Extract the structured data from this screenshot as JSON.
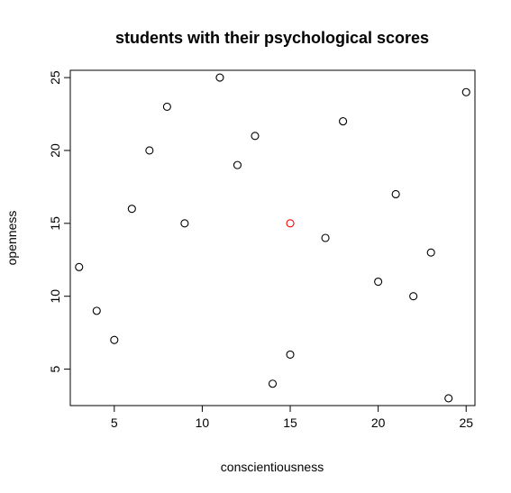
{
  "chart_data": {
    "type": "scatter",
    "title": "students with their psychological scores",
    "xlabel": "conscientiousness",
    "ylabel": "openness",
    "xlim": [
      2.5,
      25.5
    ],
    "ylim": [
      2.5,
      25.5
    ],
    "xticks": [
      5,
      10,
      15,
      20,
      25
    ],
    "yticks": [
      5,
      10,
      15,
      20,
      25
    ],
    "grid": false,
    "legend": "none",
    "marker": "open-circle",
    "series": [
      {
        "color": "#000000",
        "points": [
          {
            "x": 3,
            "y": 12
          },
          {
            "x": 4,
            "y": 9
          },
          {
            "x": 5,
            "y": 7
          },
          {
            "x": 6,
            "y": 16
          },
          {
            "x": 7,
            "y": 20
          },
          {
            "x": 8,
            "y": 23
          },
          {
            "x": 9,
            "y": 15
          },
          {
            "x": 11,
            "y": 25
          },
          {
            "x": 12,
            "y": 19
          },
          {
            "x": 13,
            "y": 21
          },
          {
            "x": 14,
            "y": 4
          },
          {
            "x": 15,
            "y": 6
          },
          {
            "x": 17,
            "y": 14
          },
          {
            "x": 18,
            "y": 22
          },
          {
            "x": 20,
            "y": 11
          },
          {
            "x": 21,
            "y": 17
          },
          {
            "x": 22,
            "y": 10
          },
          {
            "x": 23,
            "y": 13
          },
          {
            "x": 24,
            "y": 3
          },
          {
            "x": 25,
            "y": 24
          }
        ]
      },
      {
        "color": "#ff0000",
        "points": [
          {
            "x": 15,
            "y": 15
          }
        ]
      }
    ]
  }
}
